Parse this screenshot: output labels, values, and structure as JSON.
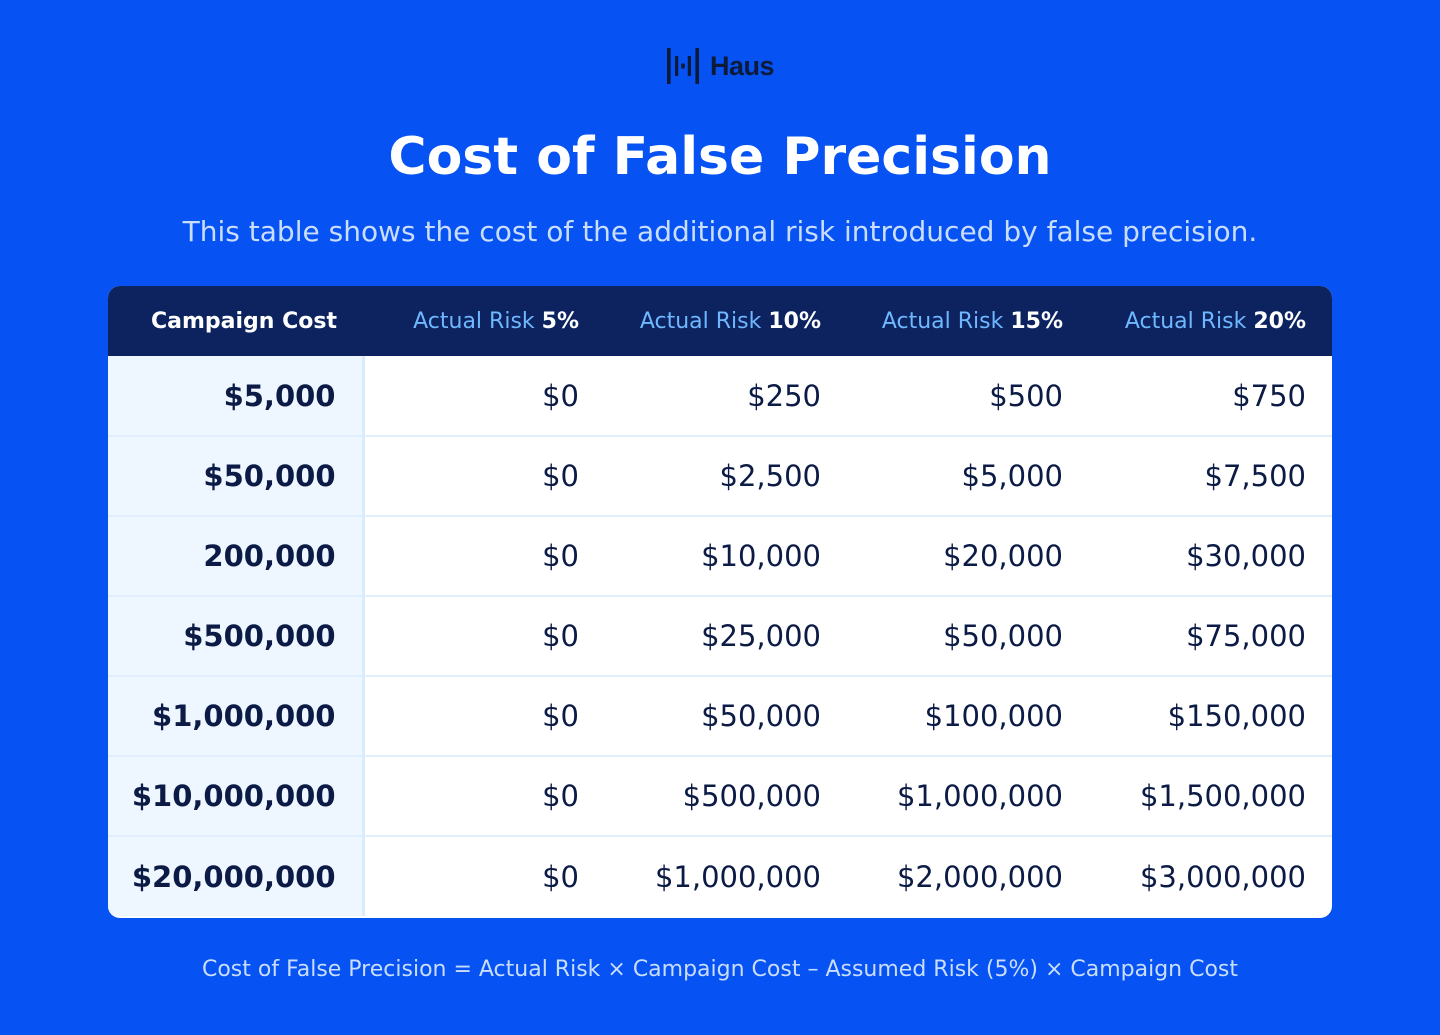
{
  "brand": {
    "logo_text": "Haus",
    "logo_icon": "haus-bars-logo-icon"
  },
  "header": {
    "title": "Cost of False Precision",
    "subtitle": "This table shows the cost of the additional risk introduced by false precision."
  },
  "table": {
    "columns": [
      {
        "label": "Campaign Cost",
        "pct": ""
      },
      {
        "label": "Actual Risk ",
        "pct": "5%"
      },
      {
        "label": "Actual Risk ",
        "pct": "10%"
      },
      {
        "label": "Actual Risk ",
        "pct": "15%"
      },
      {
        "label": "Actual Risk ",
        "pct": "20%"
      }
    ],
    "rows": [
      [
        "$5,000",
        "$0",
        "$250",
        "$500",
        "$750"
      ],
      [
        "$50,000",
        "$0",
        "$2,500",
        "$5,000",
        "$7,500"
      ],
      [
        "200,000",
        "$0",
        "$10,000",
        "$20,000",
        "$30,000"
      ],
      [
        "$500,000",
        "$0",
        "$25,000",
        "$50,000",
        "$75,000"
      ],
      [
        "$1,000,000",
        "$0",
        "$50,000",
        "$100,000",
        "$150,000"
      ],
      [
        "$10,000,000",
        "$0",
        "$500,000",
        "$1,000,000",
        "$1,500,000"
      ],
      [
        "$20,000,000",
        "$0",
        "$1,000,000",
        "$2,000,000",
        "$3,000,000"
      ]
    ]
  },
  "footer": {
    "formula": "Cost of False Precision = Actual Risk × Campaign Cost – Assumed Risk (5%) × Campaign Cost"
  },
  "colors": {
    "background": "#0652F2",
    "header_row": "#0C2360",
    "first_column": "#EEF6FF",
    "header_label": "#6FB8FF",
    "text_dark": "#0C1B45"
  }
}
